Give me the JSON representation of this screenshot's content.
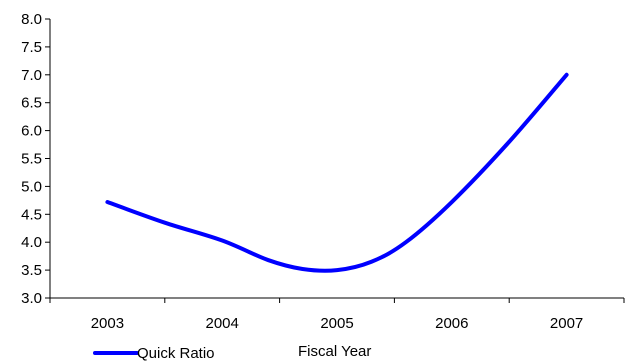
{
  "chart_data": {
    "type": "line",
    "title": "",
    "xlabel": "Fiscal Year",
    "ylabel": "",
    "categories": [
      "2003",
      "2004",
      "2005",
      "2006",
      "2007"
    ],
    "ylim": [
      3.0,
      8.0
    ],
    "yticks": [
      "3.0",
      "3.5",
      "4.0",
      "4.5",
      "5.0",
      "5.5",
      "6.0",
      "6.5",
      "7.0",
      "7.5",
      "8.0"
    ],
    "grid": false,
    "legend_position": "bottom-left",
    "series": [
      {
        "name": "Quick Ratio",
        "color": "#0000ff",
        "x": [
          2003,
          2003.5,
          2004,
          2004.4,
          2004.7,
          2005,
          2005.3,
          2005.6,
          2006,
          2006.5,
          2007
        ],
        "values": [
          4.72,
          4.35,
          4.03,
          3.68,
          3.52,
          3.5,
          3.65,
          4.0,
          4.72,
          5.8,
          7.0
        ]
      }
    ]
  }
}
